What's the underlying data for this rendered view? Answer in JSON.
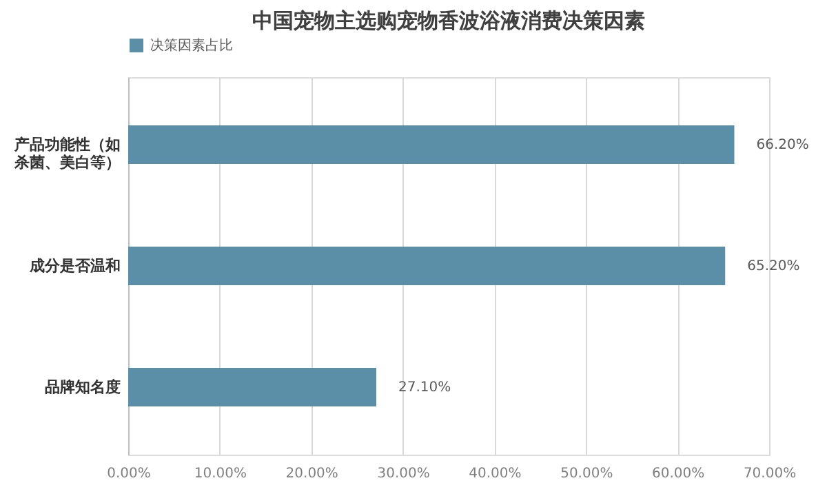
{
  "chart_data": {
    "type": "bar",
    "orientation": "horizontal",
    "title": "中国宠物主选购宠物香波浴液消费决策因素",
    "categories": [
      "产品功能性（如杀菌、美白等）",
      "成分是否温和",
      "品牌知名度"
    ],
    "series": [
      {
        "name": "决策因素占比",
        "color": "#5b8fa8",
        "values": [
          66.2,
          65.2,
          27.1
        ]
      }
    ],
    "value_labels": [
      "66.20%",
      "65.20%",
      "27.10%"
    ],
    "xlim": [
      0,
      70
    ],
    "xticks": [
      {
        "value": 0,
        "label": "0.00%"
      },
      {
        "value": 10,
        "label": "10.00%"
      },
      {
        "value": 20,
        "label": "20.00%"
      },
      {
        "value": 30,
        "label": "30.00%"
      },
      {
        "value": 40,
        "label": "40.00%"
      },
      {
        "value": 50,
        "label": "50.00%"
      },
      {
        "value": 60,
        "label": "60.00%"
      },
      {
        "value": 70,
        "label": "70.00%"
      }
    ],
    "grid": "x",
    "legend": "top"
  }
}
